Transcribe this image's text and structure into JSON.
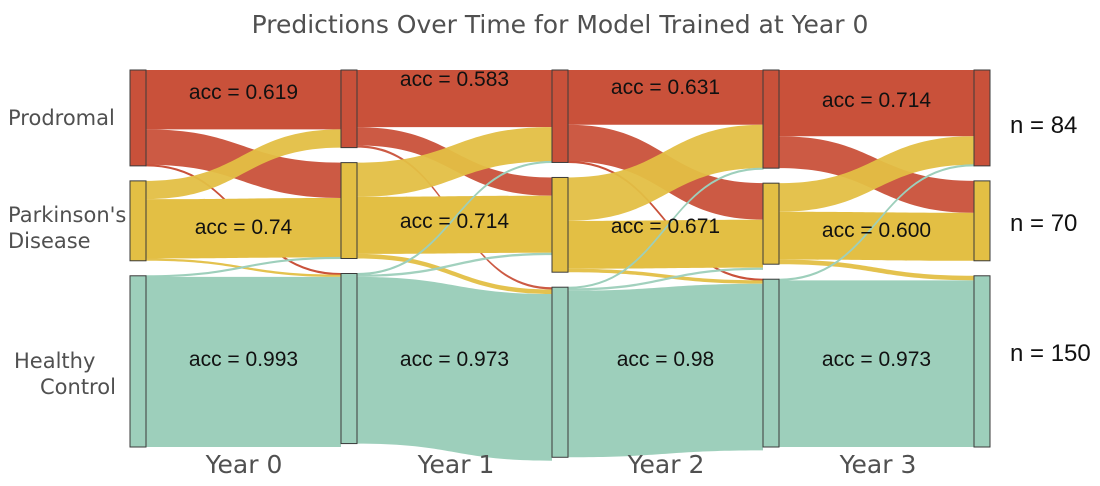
{
  "chart_data": {
    "type": "sankey",
    "title": "Predictions Over Time for Model Trained at Year 0",
    "categories": [
      {
        "key": "prodromal",
        "label_lines": [
          "Prodromal"
        ],
        "color": "#c9513a"
      },
      {
        "key": "pd",
        "label_lines": [
          "Parkinson's",
          "Disease"
        ],
        "color": "#e3bf44"
      },
      {
        "key": "hc",
        "label_lines": [
          "Healthy",
          "Control"
        ],
        "color": "#9dcfbb"
      }
    ],
    "years": [
      "Year 0",
      "Year 1",
      "Year 2",
      "Year 3"
    ],
    "totals": {
      "prodromal": 84,
      "pd": 70,
      "hc": 150
    },
    "total_labels": [
      "n = 84",
      "n = 70",
      "n = 150"
    ],
    "accuracy": [
      {
        "year": "Year 0",
        "prodromal": "acc = 0.619",
        "pd": "acc = 0.74",
        "hc": "acc = 0.993"
      },
      {
        "year": "Year 1",
        "prodromal": "acc = 0.583",
        "pd": "acc = 0.714",
        "hc": "acc = 0.973"
      },
      {
        "year": "Year 2",
        "prodromal": "acc = 0.631",
        "pd": "acc = 0.671",
        "hc": "acc = 0.98"
      },
      {
        "year": "Year 3",
        "prodromal": "acc = 0.714",
        "pd": "acc = 0.600",
        "hc": "acc = 0.973"
      }
    ],
    "transitions": [
      {
        "from_year": "Year 0",
        "flows": [
          {
            "from": "prodromal",
            "to": "prodromal",
            "value": 52
          },
          {
            "from": "prodromal",
            "to": "pd",
            "value": 31
          },
          {
            "from": "prodromal",
            "to": "hc",
            "value": 1
          },
          {
            "from": "pd",
            "to": "prodromal",
            "value": 16
          },
          {
            "from": "pd",
            "to": "pd",
            "value": 52
          },
          {
            "from": "pd",
            "to": "hc",
            "value": 2
          },
          {
            "from": "hc",
            "to": "pd",
            "value": 1
          },
          {
            "from": "hc",
            "to": "hc",
            "value": 149
          }
        ]
      },
      {
        "from_year": "Year 1",
        "flows": [
          {
            "from": "prodromal",
            "to": "prodromal",
            "value": 50
          },
          {
            "from": "prodromal",
            "to": "pd",
            "value": 16
          },
          {
            "from": "prodromal",
            "to": "hc",
            "value": 2
          },
          {
            "from": "pd",
            "to": "prodromal",
            "value": 30
          },
          {
            "from": "pd",
            "to": "pd",
            "value": 50
          },
          {
            "from": "pd",
            "to": "hc",
            "value": 4
          },
          {
            "from": "hc",
            "to": "prodromal",
            "value": 1
          },
          {
            "from": "hc",
            "to": "pd",
            "value": 2
          },
          {
            "from": "hc",
            "to": "hc",
            "value": 146
          }
        ]
      },
      {
        "from_year": "Year 2",
        "flows": [
          {
            "from": "prodromal",
            "to": "prodromal",
            "value": 48
          },
          {
            "from": "prodromal",
            "to": "pd",
            "value": 32
          },
          {
            "from": "prodromal",
            "to": "hc",
            "value": 1
          },
          {
            "from": "pd",
            "to": "prodromal",
            "value": 38
          },
          {
            "from": "pd",
            "to": "pd",
            "value": 42
          },
          {
            "from": "pd",
            "to": "hc",
            "value": 3
          },
          {
            "from": "hc",
            "to": "prodromal",
            "value": 1
          },
          {
            "from": "hc",
            "to": "pd",
            "value": 2
          },
          {
            "from": "hc",
            "to": "hc",
            "value": 146
          }
        ]
      },
      {
        "from_year": "Year 3",
        "flows": [
          {
            "from": "prodromal",
            "to": "prodromal",
            "value": 58
          },
          {
            "from": "prodromal",
            "to": "pd",
            "value": 28
          },
          {
            "from": "pd",
            "to": "prodromal",
            "value": 25
          },
          {
            "from": "pd",
            "to": "pd",
            "value": 42
          },
          {
            "from": "pd",
            "to": "hc",
            "value": 4
          },
          {
            "from": "hc",
            "to": "prodromal",
            "value": 1
          },
          {
            "from": "hc",
            "to": "hc",
            "value": 146
          }
        ]
      }
    ],
    "final_year_label": "",
    "final_counts": {
      "prodromal": 84,
      "pd": 70,
      "hc": 150
    }
  }
}
